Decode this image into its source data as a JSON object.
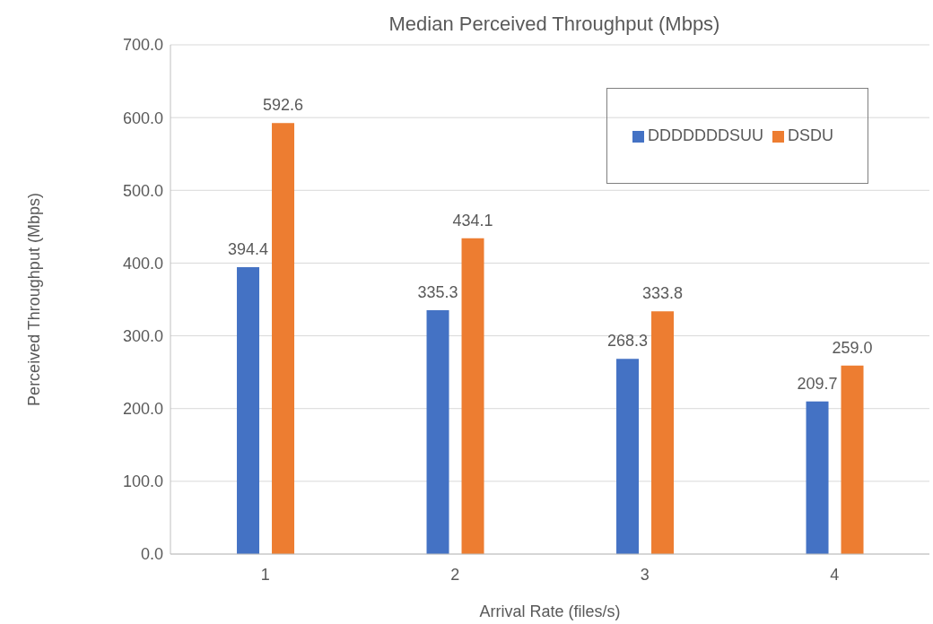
{
  "chart_data": {
    "type": "bar",
    "title": "Median Perceived Throughput (Mbps)",
    "xlabel": "Arrival Rate (files/s)",
    "ylabel": "Perceived Throughput (Mbps)",
    "categories": [
      "1",
      "2",
      "3",
      "4"
    ],
    "series": [
      {
        "name": "DDDDDDDSUU",
        "color": "#4472c4",
        "values": [
          394.4,
          335.3,
          268.3,
          209.7
        ],
        "value_labels": [
          "394.4",
          "335.3",
          "268.3",
          "209.7"
        ]
      },
      {
        "name": "DSDU",
        "color": "#ed7d31",
        "values": [
          592.6,
          434.1,
          333.8,
          259.0
        ],
        "value_labels": [
          "592.6",
          "434.1",
          "333.8",
          "259.0"
        ]
      }
    ],
    "ylim": [
      0,
      700
    ],
    "yticks": [
      {
        "value": 0,
        "label": "0.0"
      },
      {
        "value": 100,
        "label": "100.0"
      },
      {
        "value": 200,
        "label": "200.0"
      },
      {
        "value": 300,
        "label": "300.0"
      },
      {
        "value": 400,
        "label": "400.0"
      },
      {
        "value": 500,
        "label": "500.0"
      },
      {
        "value": 600,
        "label": "600.0"
      },
      {
        "value": 700,
        "label": "700.0"
      }
    ],
    "grid": "y",
    "legend": "top right"
  }
}
